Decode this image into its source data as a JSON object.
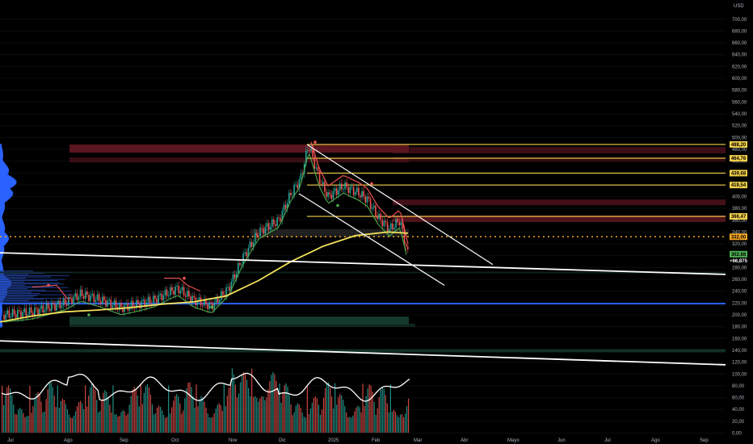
{
  "chart_data": {
    "type": "candlestick",
    "currency": "USD",
    "y_axis": {
      "ticks": [
        "0,00",
        "20,00",
        "40,00",
        "60,00",
        "80,00",
        "100,00",
        "120,00",
        "140,00",
        "160,00",
        "180,00",
        "200,00",
        "220,00",
        "240,00",
        "260,00",
        "280,00",
        "300,00",
        "320,00",
        "340,00",
        "360,00",
        "380,00",
        "400,00",
        "420,00",
        "440,00",
        "460,00",
        "480,00",
        "500,00",
        "520,00",
        "540,00",
        "560,00",
        "580,00",
        "600,00",
        "620,00",
        "640,00",
        "660,00",
        "680,00",
        "700,00"
      ],
      "tick_values": [
        0,
        20,
        40,
        60,
        80,
        100,
        120,
        140,
        160,
        180,
        200,
        220,
        240,
        260,
        280,
        300,
        320,
        340,
        360,
        380,
        400,
        420,
        440,
        460,
        480,
        500,
        520,
        540,
        560,
        580,
        600,
        620,
        640,
        660,
        680,
        700
      ],
      "range": [
        0,
        700
      ]
    },
    "x_axis": {
      "months": [
        "Jul",
        "Ago",
        "Sep",
        "Oct",
        "Nov",
        "Dic",
        "2025",
        "Feb",
        "Mar",
        "Abr",
        "Mayo",
        "Jun",
        "Jul",
        "Ago",
        "Sep"
      ]
    },
    "resistance_levels": [
      {
        "label": "488,20",
        "value": 488.2
      },
      {
        "label": "464,76",
        "value": 464.76
      },
      {
        "label": "439,68",
        "value": 439.68
      },
      {
        "label": "419,54",
        "value": 419.54
      },
      {
        "label": "366,47",
        "value": 366.47
      }
    ],
    "price_tags": [
      {
        "label": "332,00",
        "value": 332,
        "color": "#f5a623"
      },
      {
        "label": "302,68",
        "value": 302.68,
        "color": "#4caf50"
      },
      {
        "label": "+66,875",
        "value": 294,
        "color": "#ffffff"
      }
    ],
    "support_line": {
      "value": 219
    },
    "dotted_line": {
      "value": 332
    },
    "series_close": [
      {
        "date": "Jul 5",
        "v": 200
      },
      {
        "date": "Jul 20",
        "v": 205
      },
      {
        "date": "Ago 1",
        "v": 220
      },
      {
        "date": "Ago 10",
        "v": 235
      },
      {
        "date": "Ago 20",
        "v": 225
      },
      {
        "date": "Sep 1",
        "v": 212
      },
      {
        "date": "Sep 10",
        "v": 218
      },
      {
        "date": "Sep 20",
        "v": 225
      },
      {
        "date": "Oct 1",
        "v": 240
      },
      {
        "date": "Oct 5",
        "v": 245
      },
      {
        "date": "Oct 15",
        "v": 225
      },
      {
        "date": "Oct 25",
        "v": 215
      },
      {
        "date": "Nov 1",
        "v": 245
      },
      {
        "date": "Nov 10",
        "v": 295
      },
      {
        "date": "Nov 20",
        "v": 340
      },
      {
        "date": "Nov 30",
        "v": 360
      },
      {
        "date": "Dic 5",
        "v": 405
      },
      {
        "date": "Dic 12",
        "v": 430
      },
      {
        "date": "Dic 17",
        "v": 488
      },
      {
        "date": "Dic 25",
        "v": 430
      },
      {
        "date": "2025 1",
        "v": 400
      },
      {
        "date": "Ene 10",
        "v": 418
      },
      {
        "date": "Ene 20",
        "v": 405
      },
      {
        "date": "Ene 28",
        "v": 395
      },
      {
        "date": "Feb 5",
        "v": 365
      },
      {
        "date": "Feb 12",
        "v": 345
      },
      {
        "date": "Feb 20",
        "v": 360
      },
      {
        "date": "Feb 25",
        "v": 302
      }
    ]
  }
}
